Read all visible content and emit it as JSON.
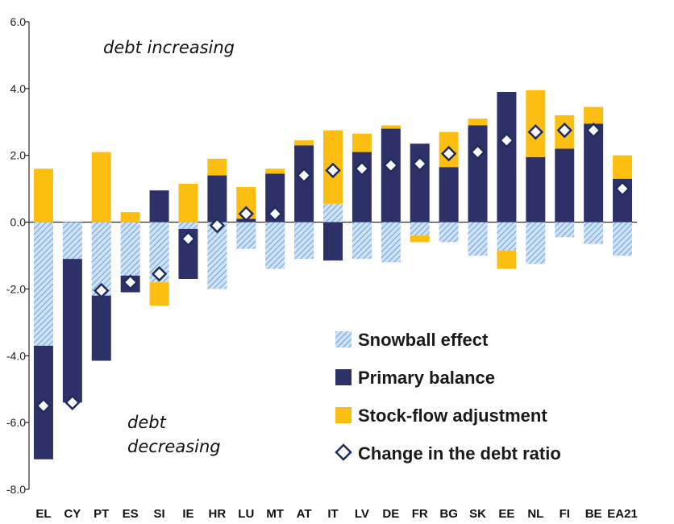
{
  "chart_data": {
    "type": "bar",
    "title": "",
    "xlabel": "",
    "ylabel": "",
    "ylim": [
      -8,
      6
    ],
    "yticks": [
      "6.0",
      "4.0",
      "2.0",
      "0.0",
      "-2.0",
      "-4.0",
      "-6.0",
      "-8.0"
    ],
    "ytick_values": [
      6,
      4,
      2,
      0,
      -2,
      -4,
      -6,
      -8
    ],
    "categories": [
      "EL",
      "CY",
      "PT",
      "ES",
      "SI",
      "IE",
      "HR",
      "LU",
      "MT",
      "AT",
      "IT",
      "LV",
      "DE",
      "FR",
      "BG",
      "SK",
      "EE",
      "NL",
      "FI",
      "BE",
      "EA21"
    ],
    "series": [
      {
        "name": "Snowball effect",
        "kind": "stacked-bar",
        "values": [
          -3.7,
          -1.1,
          -2.2,
          -1.6,
          -1.8,
          -0.2,
          -2.0,
          -0.8,
          -1.4,
          -1.1,
          0.55,
          -1.1,
          -1.2,
          -0.4,
          -0.6,
          -1.0,
          -0.85,
          -1.25,
          -0.45,
          -0.65,
          -1.0
        ]
      },
      {
        "name": "Primary balance",
        "kind": "stacked-bar",
        "values": [
          -3.4,
          -4.3,
          -1.95,
          -0.5,
          0.95,
          -1.5,
          1.4,
          0.1,
          1.45,
          2.3,
          -1.15,
          2.1,
          2.8,
          2.35,
          1.65,
          2.9,
          3.9,
          1.95,
          2.2,
          2.95,
          1.3
        ]
      },
      {
        "name": "Stock-flow adjustment",
        "kind": "stacked-bar",
        "values": [
          1.6,
          0.0,
          2.1,
          0.3,
          -0.7,
          1.15,
          0.5,
          0.95,
          0.15,
          0.15,
          2.2,
          0.55,
          0.1,
          -0.2,
          1.05,
          0.2,
          -0.55,
          2.0,
          1.0,
          0.5,
          0.7
        ]
      },
      {
        "name": "Change in the debt ratio",
        "kind": "marker",
        "values": [
          -5.5,
          -5.4,
          -2.05,
          -1.8,
          -1.55,
          -0.5,
          -0.1,
          0.25,
          0.25,
          1.4,
          1.55,
          1.6,
          1.7,
          1.75,
          2.05,
          2.1,
          2.45,
          2.7,
          2.75,
          2.75,
          1.0
        ]
      }
    ],
    "annotations": [
      "debt increasing",
      "debt",
      "decreasing"
    ],
    "legend_position": "bottom-right",
    "colors": {
      "snowball": "#a9c9ec",
      "snowball_hatch": "#5b9bd5",
      "primary": "#2e3168",
      "stockflow": "#fcbf11",
      "marker_stroke": "#1f2d5c",
      "marker_fill": "#ffffff"
    }
  }
}
